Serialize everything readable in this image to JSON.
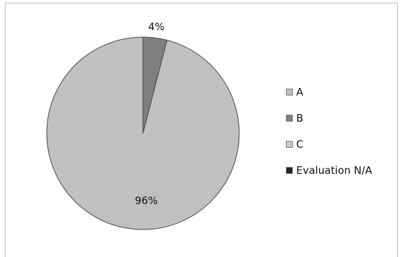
{
  "chart_data": {
    "type": "pie",
    "slices": [
      {
        "label": "A",
        "value": 96,
        "display": "96%",
        "color": "#c0c0c0"
      },
      {
        "label": "B",
        "value": 4,
        "display": "4%",
        "color": "#7f7f7f"
      },
      {
        "label": "C",
        "value": 0,
        "display": "",
        "color": "#c9c9c9"
      },
      {
        "label": "Evaluation N/A",
        "value": 0,
        "display": "",
        "color": "#262626"
      }
    ],
    "legend": {
      "position": "right"
    }
  },
  "legend": {
    "items": [
      {
        "label": "A",
        "color": "#c0c0c0"
      },
      {
        "label": "B",
        "color": "#7f7f7f"
      },
      {
        "label": "C",
        "color": "#c9c9c9"
      },
      {
        "label": "Evaluation N/A",
        "color": "#262626"
      }
    ]
  }
}
